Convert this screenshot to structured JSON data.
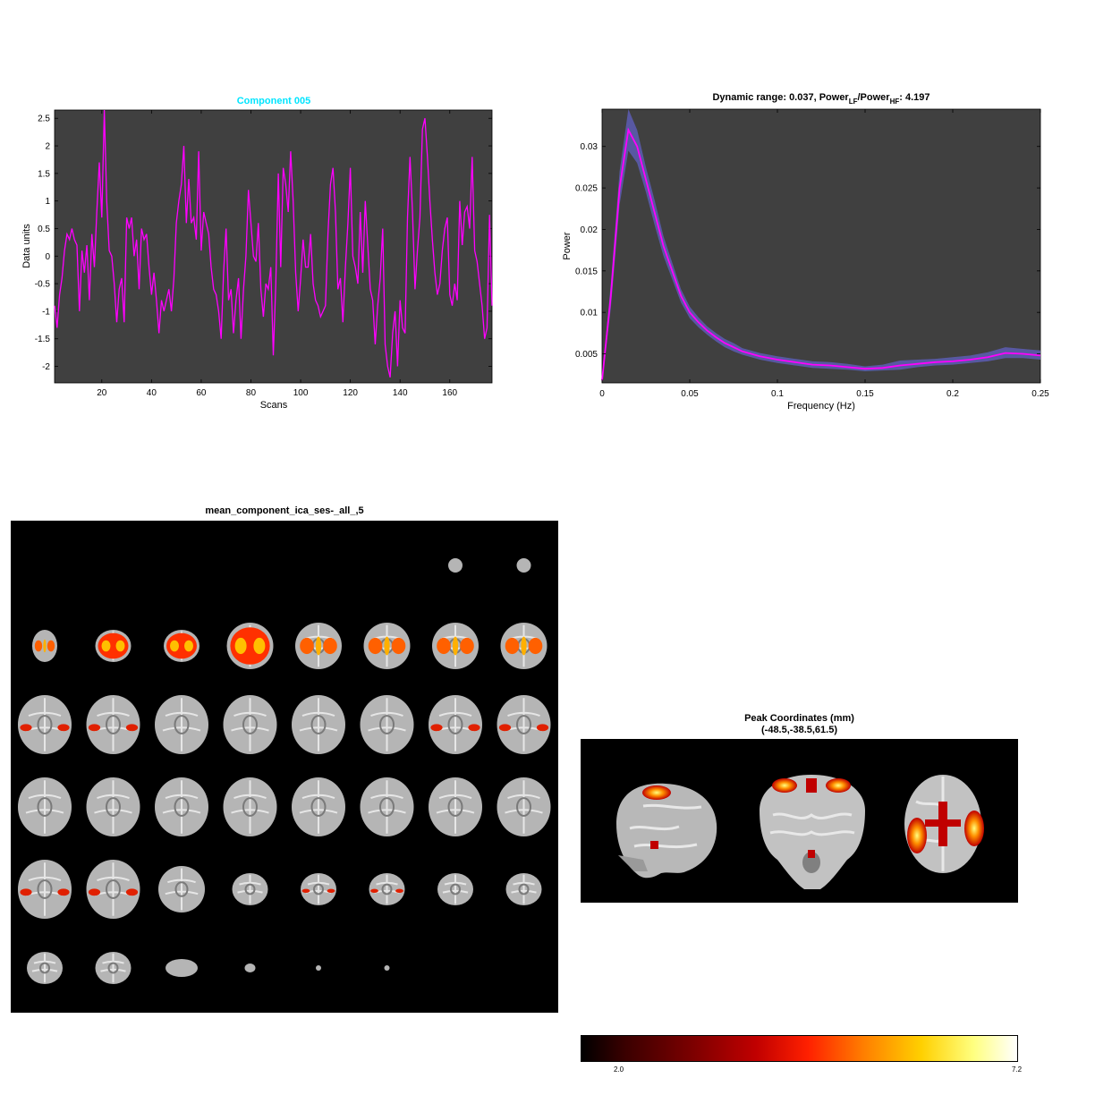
{
  "chart_data": [
    {
      "type": "line",
      "title": "Component 005",
      "title_color": "#00e5ff",
      "xlabel": "Scans",
      "ylabel": "Data units",
      "xlim": [
        1,
        177
      ],
      "ylim": [
        -2.3,
        2.65
      ],
      "xticks": [
        20,
        40,
        60,
        80,
        100,
        120,
        140,
        160
      ],
      "yticks": [
        -2,
        -1.5,
        -1,
        -0.5,
        0,
        0.5,
        1,
        1.5,
        2,
        2.5
      ],
      "background": "#404040",
      "line_color": "#ff00ff",
      "series": [
        {
          "values": [
            -0.9,
            -1.3,
            -0.7,
            -0.4,
            0.1,
            0.4,
            0.3,
            0.5,
            0.3,
            0.2,
            -1.0,
            0.1,
            -0.3,
            0.2,
            -0.8,
            0.4,
            -0.2,
            0.8,
            1.7,
            0.7,
            2.65,
            1.0,
            0.1,
            0.0,
            -0.5,
            -1.2,
            -0.6,
            -0.4,
            -1.2,
            0.7,
            0.5,
            0.7,
            0.0,
            0.3,
            -0.6,
            0.5,
            0.3,
            0.4,
            -0.2,
            -0.7,
            -0.3,
            -0.8,
            -1.4,
            -0.8,
            -1.0,
            -0.8,
            -0.6,
            -1.0,
            -0.4,
            0.6,
            1.0,
            1.3,
            2.0,
            0.6,
            1.4,
            0.6,
            0.7,
            0.3,
            1.9,
            0.1,
            0.8,
            0.6,
            0.4,
            -0.2,
            -0.6,
            -0.7,
            -1.0,
            -1.5,
            -0.3,
            0.5,
            -0.8,
            -0.6,
            -1.4,
            -0.8,
            -0.4,
            -1.5,
            -0.6,
            0.0,
            1.2,
            0.6,
            0.0,
            -0.1,
            0.6,
            -0.6,
            -1.1,
            -0.5,
            -0.6,
            -0.2,
            -1.8,
            -0.5,
            1.5,
            -0.2,
            1.6,
            1.3,
            0.8,
            1.9,
            1.0,
            -0.3,
            -1.0,
            -0.4,
            0.3,
            -0.2,
            -0.2,
            0.4,
            -0.5,
            -0.8,
            -0.9,
            -1.1,
            -1.0,
            -0.9,
            0.4,
            1.3,
            1.6,
            0.8,
            -0.6,
            -0.4,
            -1.2,
            -0.2,
            0.6,
            1.6,
            0.0,
            -0.2,
            -0.5,
            0.8,
            -0.3,
            1.0,
            0.2,
            -0.6,
            -0.8,
            -1.6,
            -0.9,
            -0.4,
            0.5,
            -1.6,
            -2.0,
            -2.2,
            -1.4,
            -1.0,
            -2.0,
            -0.8,
            -1.3,
            -1.4,
            0.7,
            1.8,
            0.8,
            -0.6,
            0.1,
            0.7,
            2.3,
            2.5,
            1.8,
            1.0,
            0.3,
            -0.3,
            -0.7,
            -0.5,
            0.1,
            0.5,
            0.7,
            -0.7,
            -0.9,
            -0.5,
            -0.8,
            1.0,
            0.2,
            0.8,
            0.9,
            0.5,
            1.8,
            0.1,
            -0.1,
            -0.5,
            -0.9,
            -1.5,
            -1.3,
            0.75,
            -0.9
          ]
        }
      ]
    },
    {
      "type": "area",
      "title": "Dynamic range: 0.037, Power",
      "title_sub1": "LF",
      "title_mid": "/Power",
      "title_sub2": "HF",
      "title_end": ": 4.197",
      "xlabel": "Frequency (Hz)",
      "ylabel": "Power",
      "xlim": [
        0,
        0.25
      ],
      "ylim": [
        0.0015,
        0.0345
      ],
      "xticks": [
        0,
        0.05,
        0.1,
        0.15,
        0.2,
        0.25
      ],
      "yticks": [
        0.005,
        0.01,
        0.015,
        0.02,
        0.025,
        0.03
      ],
      "background": "#404040",
      "line_color": "#ff00ff",
      "band_color": "#5a5aa8",
      "series": [
        {
          "x": [
            0,
            0.005,
            0.01,
            0.015,
            0.02,
            0.025,
            0.03,
            0.035,
            0.04,
            0.045,
            0.05,
            0.055,
            0.06,
            0.065,
            0.07,
            0.075,
            0.08,
            0.09,
            0.1,
            0.11,
            0.12,
            0.13,
            0.14,
            0.15,
            0.16,
            0.17,
            0.18,
            0.19,
            0.2,
            0.21,
            0.22,
            0.23,
            0.24,
            0.25
          ],
          "mean": [
            0.0018,
            0.012,
            0.025,
            0.032,
            0.03,
            0.026,
            0.022,
            0.018,
            0.015,
            0.012,
            0.01,
            0.0088,
            0.0078,
            0.007,
            0.0063,
            0.0058,
            0.0053,
            0.0047,
            0.0043,
            0.004,
            0.0037,
            0.0036,
            0.0034,
            0.0032,
            0.0033,
            0.0036,
            0.0038,
            0.004,
            0.0041,
            0.0043,
            0.0046,
            0.0051,
            0.005,
            0.0048
          ],
          "lower": [
            0.0016,
            0.0105,
            0.023,
            0.0295,
            0.028,
            0.0245,
            0.0205,
            0.0168,
            0.014,
            0.0112,
            0.0093,
            0.0082,
            0.0073,
            0.0065,
            0.0058,
            0.0053,
            0.0049,
            0.0043,
            0.0039,
            0.0036,
            0.0033,
            0.0032,
            0.0031,
            0.0029,
            0.003,
            0.0031,
            0.0034,
            0.0036,
            0.0037,
            0.0039,
            0.0041,
            0.0045,
            0.0045,
            0.0043
          ],
          "upper": [
            0.002,
            0.0135,
            0.027,
            0.0345,
            0.032,
            0.0275,
            0.0235,
            0.0192,
            0.016,
            0.0128,
            0.0107,
            0.0094,
            0.0083,
            0.0075,
            0.0068,
            0.0063,
            0.0057,
            0.0051,
            0.0047,
            0.0044,
            0.0041,
            0.004,
            0.0038,
            0.0035,
            0.0037,
            0.0042,
            0.0043,
            0.0044,
            0.0046,
            0.0048,
            0.0052,
            0.0058,
            0.0056,
            0.0054
          ]
        }
      ]
    }
  ],
  "montage": {
    "title": "mean_component_ica_ses-_all_,5",
    "rows": [
      [
        null,
        null,
        null,
        null,
        null,
        null,
        {
          "size": "tiny",
          "act": 0
        },
        {
          "size": "tiny",
          "act": 0
        }
      ],
      [
        {
          "size": "smallv",
          "act": 2
        },
        {
          "size": "small",
          "act": 3
        },
        {
          "size": "small",
          "act": 3
        },
        {
          "size": "med",
          "act": 3
        },
        {
          "size": "med",
          "act": 2
        },
        {
          "size": "med",
          "act": 2
        },
        {
          "size": "med",
          "act": 2
        },
        {
          "size": "med",
          "act": 2
        }
      ],
      [
        {
          "size": "large",
          "act": 1
        },
        {
          "size": "large",
          "act": 1
        },
        {
          "size": "large",
          "act": 0
        },
        {
          "size": "large",
          "act": 0
        },
        {
          "size": "large",
          "act": 0
        },
        {
          "size": "large",
          "act": 0
        },
        {
          "size": "large",
          "act": 1
        },
        {
          "size": "large",
          "act": 1
        }
      ],
      [
        {
          "size": "large",
          "act": 0
        },
        {
          "size": "large",
          "act": 0
        },
        {
          "size": "large",
          "act": 0
        },
        {
          "size": "large",
          "act": 0
        },
        {
          "size": "large",
          "act": 0
        },
        {
          "size": "large",
          "act": 0
        },
        {
          "size": "large",
          "act": 0
        },
        {
          "size": "large",
          "act": 0
        }
      ],
      [
        {
          "size": "large",
          "act": 1
        },
        {
          "size": "large",
          "act": 1
        },
        {
          "size": "med",
          "act": 0
        },
        {
          "size": "small",
          "act": 0
        },
        {
          "size": "small",
          "act": 1
        },
        {
          "size": "small",
          "act": 1
        },
        {
          "size": "small",
          "act": 0
        },
        {
          "size": "small",
          "act": 0
        }
      ],
      [
        {
          "size": "small",
          "act": 0
        },
        {
          "size": "small",
          "act": 0
        },
        {
          "size": "smaller",
          "act": 0
        },
        {
          "size": "dot",
          "act": 0
        },
        {
          "size": "speck",
          "act": 0
        },
        {
          "size": "speck",
          "act": 0
        },
        null,
        null
      ]
    ]
  },
  "peak": {
    "title": "Peak Coordinates (mm)",
    "coords": "(-48.5,-38.5,61.5)"
  },
  "colorbar": {
    "min_label": "2.0",
    "max_label": "7.2"
  }
}
